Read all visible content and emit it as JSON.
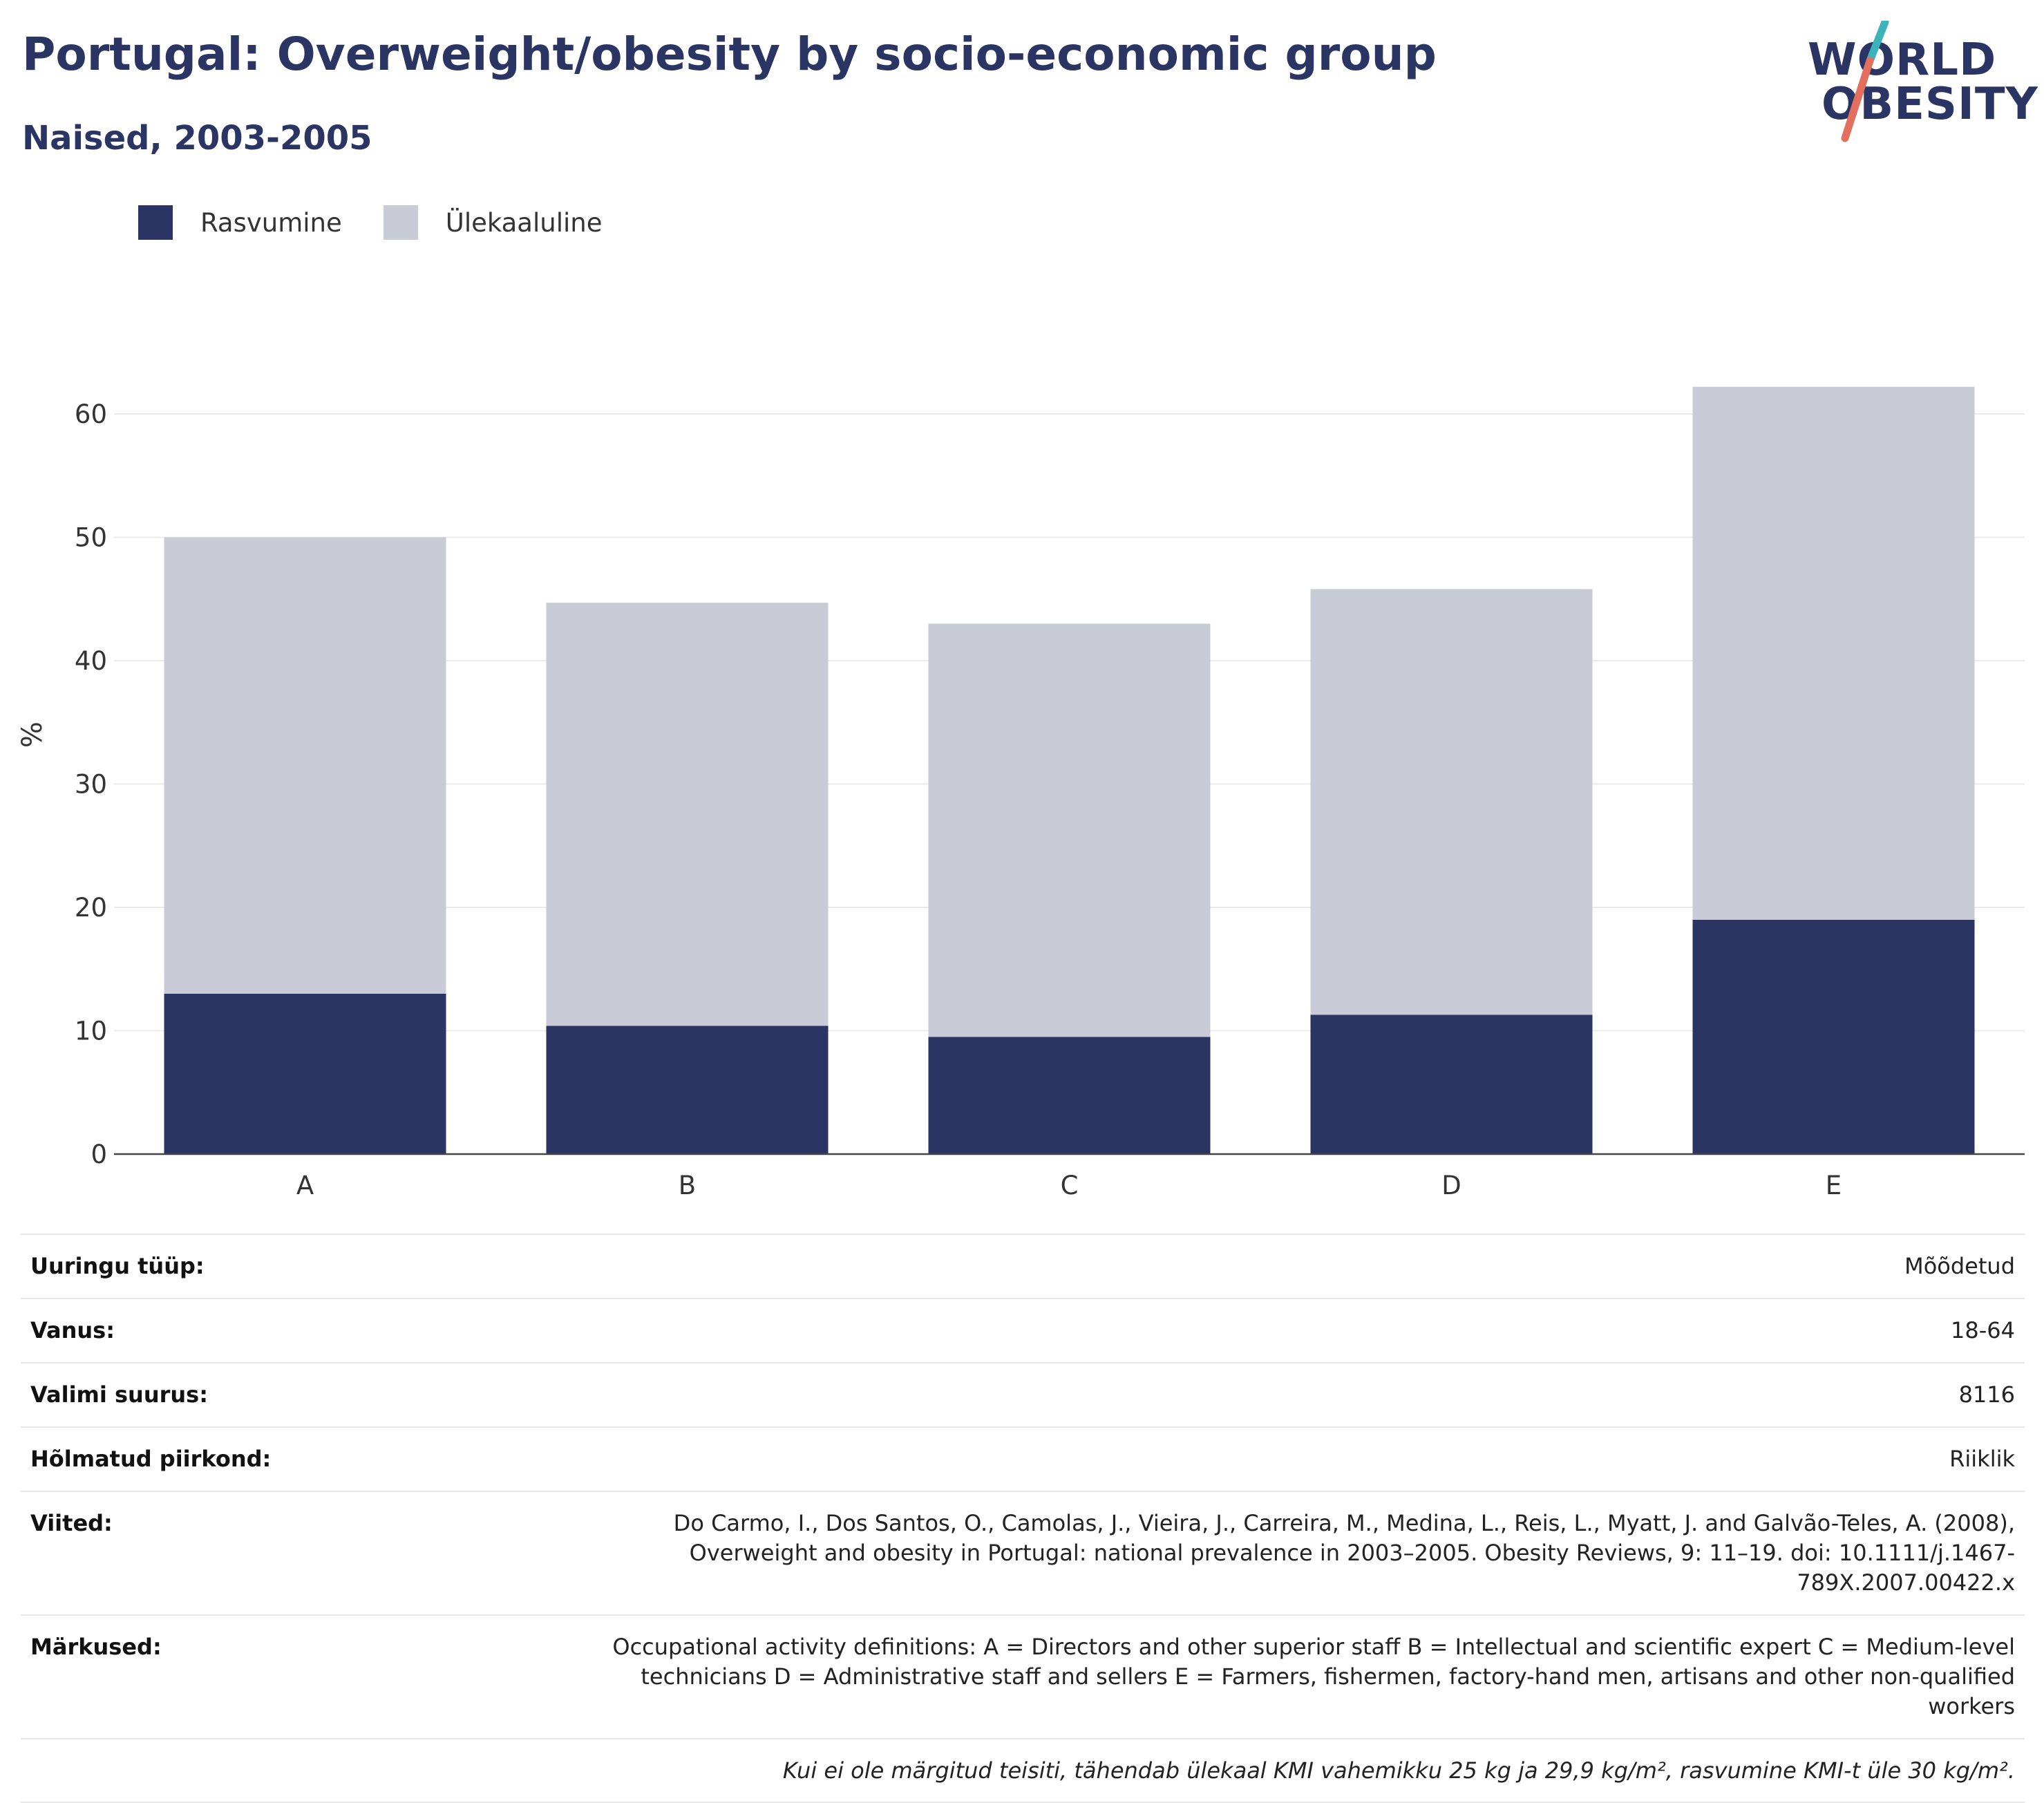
{
  "header": {
    "title": "Portugal: Overweight/obesity by socio-economic group",
    "subtitle": "Naised, 2003-2005"
  },
  "logo": {
    "line1": "WORLD",
    "line2": "OBESITY"
  },
  "colors": {
    "obesity": "#2b3563",
    "overweight": "#c9cbd7",
    "title": "#2b3563",
    "logo_teal": "#3bb3b8",
    "logo_coral": "#e3705f"
  },
  "chart_data": {
    "type": "bar",
    "stacked": true,
    "categories": [
      "A",
      "B",
      "C",
      "D",
      "E"
    ],
    "series": [
      {
        "name": "Rasvumine",
        "values": [
          13.0,
          10.4,
          9.5,
          11.3,
          19.0
        ]
      },
      {
        "name": "Ülekaaluline",
        "values": [
          37.0,
          34.3,
          33.5,
          34.5,
          43.2
        ]
      }
    ],
    "ylabel": "%",
    "xlabel": "",
    "ylim": [
      0,
      68
    ],
    "yticks": [
      0,
      10,
      20,
      30,
      40,
      50,
      60
    ],
    "grid": true,
    "legend": "top-left"
  },
  "info": [
    {
      "label": "Uuringu tüüp:",
      "value": "Mõõdetud"
    },
    {
      "label": "Vanus:",
      "value": "18-64"
    },
    {
      "label": "Valimi suurus:",
      "value": "8116"
    },
    {
      "label": "Hõlmatud piirkond:",
      "value": "Riiklik"
    },
    {
      "label": "Viited:",
      "value": "Do Carmo, I., Dos Santos, O., Camolas, J., Vieira, J., Carreira, M., Medina, L., Reis, L., Myatt, J. and Galvão-Teles, A. (2008), Overweight and obesity in Portugal: national prevalence in 2003–2005. Obesity Reviews, 9: 11–19. doi: 10.1111/j.1467-789X.2007.00422.x"
    },
    {
      "label": "Märkused:",
      "value": "Occupational activity definitions: A = Directors and other superior staff B = Intellectual and scientific expert C = Medium-level technicians D = Administrative staff and sellers E = Farmers, fishermen, factory-hand men, artisans and other non-qualified workers"
    }
  ],
  "footnote": "Kui ei ole märgitud teisiti, tähendab ülekaal KMI vahemikku 25 kg ja 29,9 kg/m², rasvumine KMI-t üle 30 kg/m²."
}
